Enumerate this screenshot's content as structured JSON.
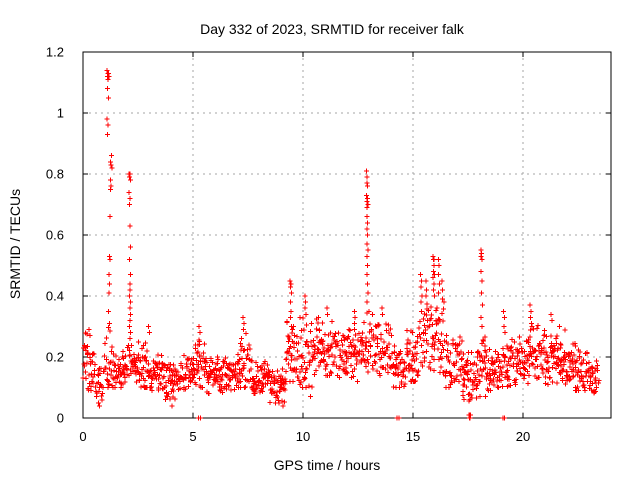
{
  "chart_data": {
    "type": "scatter",
    "title": "Day 332 of 2023, SRMTID for receiver falk",
    "xlabel": "GPS time / hours",
    "ylabel": "SRMTID / TECUs",
    "xlim": [
      0,
      24
    ],
    "ylim": [
      0,
      1.2
    ],
    "xticks": [
      {
        "v": 0,
        "label": "0"
      },
      {
        "v": 5,
        "label": "5"
      },
      {
        "v": 10,
        "label": "10"
      },
      {
        "v": 15,
        "label": "15"
      },
      {
        "v": 20,
        "label": "20"
      }
    ],
    "yticks": [
      {
        "v": 0,
        "label": "0"
      },
      {
        "v": 0.2,
        "label": "0.2"
      },
      {
        "v": 0.4,
        "label": "0.4"
      },
      {
        "v": 0.6,
        "label": "0.6"
      },
      {
        "v": 0.8,
        "label": "0.8"
      },
      {
        "v": 1,
        "label": "1"
      },
      {
        "v": 1.2,
        "label": "1.2"
      }
    ],
    "grid": true,
    "legend": "none",
    "marker": "plus",
    "style": {
      "marker_color": "#ff0000",
      "grid_color": "#a6a6a6",
      "axis_color": "#000000",
      "background": "#ffffff"
    },
    "feature_points": [
      [
        1.1,
        1.14
      ],
      [
        1.13,
        1.13
      ],
      [
        1.16,
        1.13
      ],
      [
        1.12,
        1.12
      ],
      [
        1.18,
        1.12
      ],
      [
        1.14,
        1.11
      ],
      [
        1.12,
        1.08
      ],
      [
        1.15,
        1.05
      ],
      [
        1.1,
        0.98
      ],
      [
        1.13,
        0.96
      ],
      [
        1.12,
        0.93
      ],
      [
        1.3,
        0.86
      ],
      [
        1.26,
        0.84
      ],
      [
        1.28,
        0.83
      ],
      [
        1.32,
        0.82
      ],
      [
        1.24,
        0.78
      ],
      [
        1.27,
        0.76
      ],
      [
        1.25,
        0.75
      ],
      [
        1.22,
        0.66
      ],
      [
        1.2,
        0.53
      ],
      [
        1.23,
        0.52
      ],
      [
        1.18,
        0.47
      ],
      [
        1.21,
        0.44
      ],
      [
        1.19,
        0.41
      ],
      [
        1.17,
        0.35
      ],
      [
        1.21,
        0.31
      ],
      [
        2.1,
        0.8
      ],
      [
        2.13,
        0.8
      ],
      [
        2.12,
        0.79
      ],
      [
        2.15,
        0.78
      ],
      [
        2.1,
        0.74
      ],
      [
        2.14,
        0.72
      ],
      [
        2.12,
        0.7
      ],
      [
        2.13,
        0.63
      ],
      [
        2.16,
        0.56
      ],
      [
        2.12,
        0.52
      ],
      [
        2.15,
        0.47
      ],
      [
        2.13,
        0.44
      ],
      [
        2.14,
        0.42
      ],
      [
        2.12,
        0.4
      ],
      [
        2.15,
        0.38
      ],
      [
        2.13,
        0.36
      ],
      [
        2.16,
        0.34
      ],
      [
        2.14,
        0.32
      ],
      [
        2.12,
        0.3
      ],
      [
        2.15,
        0.28
      ],
      [
        2.13,
        0.26
      ],
      [
        12.88,
        0.81
      ],
      [
        12.92,
        0.79
      ],
      [
        12.9,
        0.77
      ],
      [
        12.94,
        0.76
      ],
      [
        12.89,
        0.73
      ],
      [
        12.93,
        0.72
      ],
      [
        12.91,
        0.71
      ],
      [
        12.95,
        0.7
      ],
      [
        12.9,
        0.69
      ],
      [
        12.92,
        0.66
      ],
      [
        12.94,
        0.64
      ],
      [
        12.91,
        0.62
      ],
      [
        12.93,
        0.6
      ],
      [
        12.9,
        0.57
      ],
      [
        12.95,
        0.55
      ],
      [
        12.92,
        0.53
      ],
      [
        12.94,
        0.5
      ],
      [
        12.91,
        0.47
      ],
      [
        12.93,
        0.44
      ],
      [
        12.95,
        0.41
      ],
      [
        12.92,
        0.38
      ],
      [
        13.0,
        0.35
      ],
      [
        9.42,
        0.45
      ],
      [
        9.45,
        0.44
      ],
      [
        9.44,
        0.43
      ],
      [
        9.47,
        0.41
      ],
      [
        9.43,
        0.38
      ],
      [
        9.46,
        0.35
      ],
      [
        9.44,
        0.33
      ],
      [
        9.48,
        0.3
      ],
      [
        10.08,
        0.4
      ],
      [
        10.12,
        0.38
      ],
      [
        10.1,
        0.36
      ],
      [
        10.14,
        0.34
      ],
      [
        15.35,
        0.47
      ],
      [
        15.38,
        0.45
      ],
      [
        15.36,
        0.43
      ],
      [
        15.4,
        0.4
      ],
      [
        15.37,
        0.38
      ],
      [
        15.6,
        0.45
      ],
      [
        15.62,
        0.42
      ],
      [
        15.58,
        0.4
      ],
      [
        15.92,
        0.53
      ],
      [
        15.95,
        0.52
      ],
      [
        15.93,
        0.52
      ],
      [
        15.96,
        0.5
      ],
      [
        15.94,
        0.48
      ],
      [
        15.97,
        0.47
      ],
      [
        15.92,
        0.46
      ],
      [
        15.95,
        0.44
      ],
      [
        15.93,
        0.42
      ],
      [
        15.98,
        0.4
      ],
      [
        16.15,
        0.52
      ],
      [
        16.18,
        0.5
      ],
      [
        16.16,
        0.47
      ],
      [
        16.2,
        0.44
      ],
      [
        16.17,
        0.41
      ],
      [
        16.32,
        0.45
      ],
      [
        16.35,
        0.42
      ],
      [
        16.33,
        0.39
      ],
      [
        18.08,
        0.55
      ],
      [
        18.12,
        0.54
      ],
      [
        18.1,
        0.53
      ],
      [
        18.14,
        0.52
      ],
      [
        18.09,
        0.48
      ],
      [
        18.13,
        0.45
      ],
      [
        18.11,
        0.41
      ],
      [
        18.15,
        0.37
      ],
      [
        18.1,
        0.33
      ],
      [
        18.13,
        0.3
      ],
      [
        19.12,
        0.35
      ],
      [
        19.16,
        0.33
      ],
      [
        19.14,
        0.3
      ],
      [
        19.18,
        0.28
      ],
      [
        20.32,
        0.37
      ],
      [
        20.36,
        0.35
      ],
      [
        20.34,
        0.33
      ],
      [
        20.38,
        0.31
      ],
      [
        20.42,
        0.3
      ],
      [
        7.28,
        0.33
      ],
      [
        7.32,
        0.31
      ],
      [
        7.3,
        0.29
      ],
      [
        5.28,
        0.3
      ],
      [
        5.32,
        0.28
      ],
      [
        12.33,
        0.35
      ],
      [
        12.37,
        0.33
      ],
      [
        12.35,
        0.31
      ],
      [
        11.08,
        0.36
      ],
      [
        11.12,
        0.34
      ],
      [
        13.58,
        0.36
      ],
      [
        13.62,
        0.34
      ],
      [
        21.28,
        0.34
      ],
      [
        21.32,
        0.32
      ],
      [
        0.28,
        0.29
      ],
      [
        0.32,
        0.27
      ],
      [
        2.98,
        0.3
      ],
      [
        3.02,
        0.28
      ],
      [
        5.25,
        0.0
      ],
      [
        5.33,
        0.0
      ],
      [
        14.28,
        0.0
      ],
      [
        14.36,
        0.0
      ],
      [
        17.54,
        0.01
      ],
      [
        17.57,
        0.0
      ],
      [
        17.6,
        0.01
      ],
      [
        17.56,
        0.0
      ],
      [
        17.59,
        0.0
      ],
      [
        17.62,
        0.01
      ],
      [
        19.08,
        0.0
      ],
      [
        19.16,
        0.0
      ],
      [
        0.7,
        0.05
      ],
      [
        0.74,
        0.04
      ],
      [
        4.05,
        0.04
      ],
      [
        9.1,
        0.04
      ],
      [
        10.33,
        0.07
      ],
      [
        17.32,
        0.06
      ],
      [
        8.75,
        0.05
      ],
      [
        18.05,
        0.07
      ],
      [
        18.3,
        0.07
      ]
    ],
    "baseline_segments_format": [
      "x_start",
      "x_end",
      "y_min",
      "y_max",
      "y_center",
      "n_points"
    ],
    "baseline_segments": [
      [
        0.0,
        0.5,
        0.09,
        0.28,
        0.17,
        25
      ],
      [
        0.5,
        0.9,
        0.05,
        0.18,
        0.11,
        20
      ],
      [
        0.9,
        1.4,
        0.1,
        0.3,
        0.18,
        25
      ],
      [
        1.4,
        2.0,
        0.1,
        0.22,
        0.15,
        30
      ],
      [
        2.0,
        2.35,
        0.14,
        0.26,
        0.19,
        18
      ],
      [
        2.35,
        3.1,
        0.1,
        0.25,
        0.16,
        38
      ],
      [
        3.1,
        3.7,
        0.09,
        0.21,
        0.14,
        30
      ],
      [
        3.7,
        4.4,
        0.06,
        0.18,
        0.12,
        35
      ],
      [
        4.4,
        5.1,
        0.09,
        0.21,
        0.14,
        35
      ],
      [
        5.1,
        5.6,
        0.1,
        0.26,
        0.17,
        25
      ],
      [
        5.6,
        7.0,
        0.08,
        0.2,
        0.14,
        70
      ],
      [
        7.0,
        7.6,
        0.1,
        0.28,
        0.18,
        30
      ],
      [
        7.6,
        8.5,
        0.08,
        0.2,
        0.13,
        45
      ],
      [
        8.5,
        9.2,
        0.05,
        0.16,
        0.1,
        35
      ],
      [
        9.2,
        9.8,
        0.12,
        0.32,
        0.21,
        30
      ],
      [
        9.8,
        10.45,
        0.1,
        0.33,
        0.2,
        32
      ],
      [
        10.45,
        11.6,
        0.14,
        0.33,
        0.22,
        58
      ],
      [
        11.6,
        12.6,
        0.12,
        0.3,
        0.2,
        50
      ],
      [
        12.6,
        13.15,
        0.15,
        0.35,
        0.24,
        27
      ],
      [
        13.15,
        14.05,
        0.14,
        0.34,
        0.23,
        45
      ],
      [
        14.05,
        14.7,
        0.1,
        0.24,
        0.16,
        32
      ],
      [
        14.7,
        15.25,
        0.12,
        0.34,
        0.2,
        27
      ],
      [
        15.25,
        16.45,
        0.15,
        0.38,
        0.25,
        60
      ],
      [
        16.45,
        17.25,
        0.1,
        0.3,
        0.18,
        40
      ],
      [
        17.25,
        17.95,
        0.05,
        0.22,
        0.13,
        35
      ],
      [
        17.95,
        18.35,
        0.12,
        0.3,
        0.2,
        20
      ],
      [
        18.35,
        19.05,
        0.09,
        0.24,
        0.15,
        35
      ],
      [
        19.05,
        19.45,
        0.08,
        0.26,
        0.16,
        20
      ],
      [
        19.45,
        20.25,
        0.11,
        0.28,
        0.18,
        40
      ],
      [
        20.25,
        20.75,
        0.13,
        0.33,
        0.21,
        25
      ],
      [
        20.75,
        22.1,
        0.11,
        0.3,
        0.19,
        67
      ],
      [
        22.1,
        23.0,
        0.09,
        0.25,
        0.16,
        45
      ],
      [
        23.0,
        23.45,
        0.08,
        0.2,
        0.13,
        22
      ]
    ]
  }
}
